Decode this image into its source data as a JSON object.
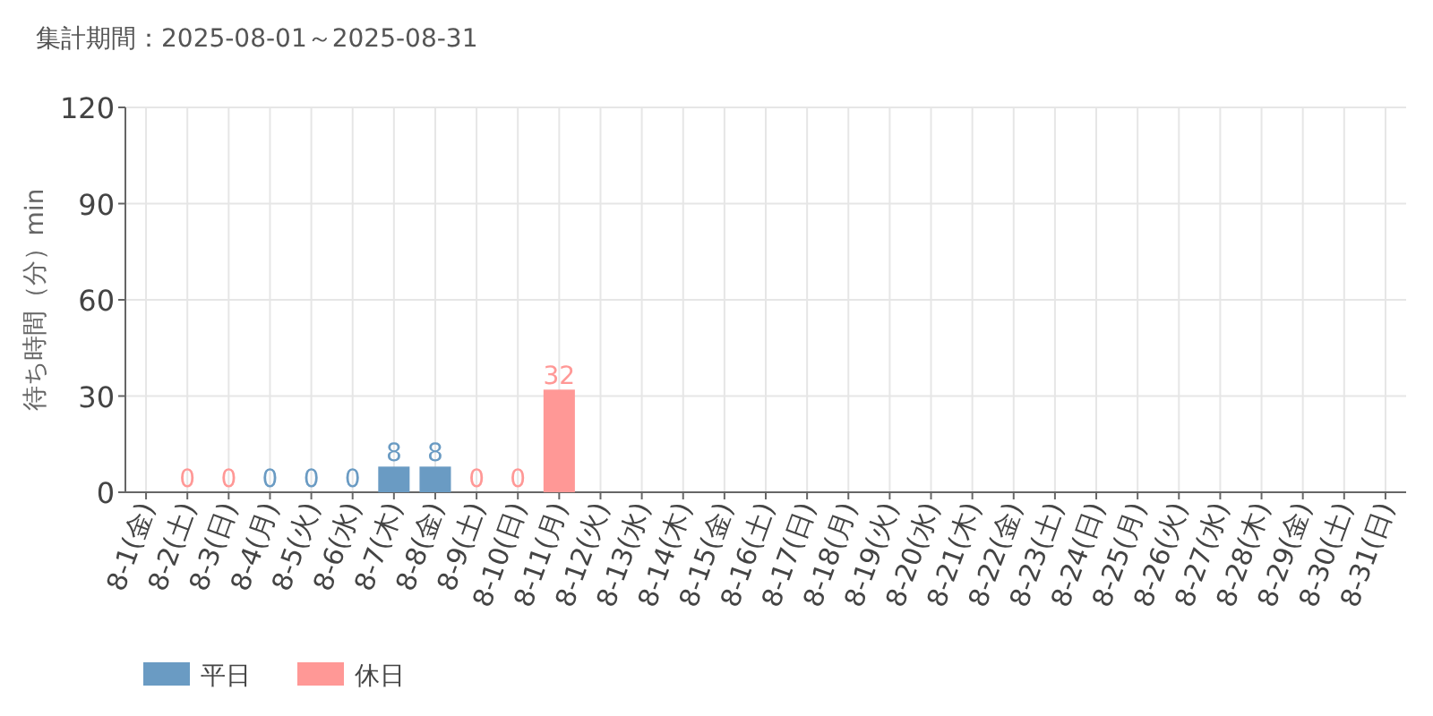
{
  "chart_data": {
    "type": "bar",
    "title": "集計期間：2025-08-01～2025-08-31",
    "ylabel": "待ち時間（分）min",
    "categories": [
      "8-1(金)",
      "8-2(土)",
      "8-3(日)",
      "8-4(月)",
      "8-5(火)",
      "8-6(水)",
      "8-7(木)",
      "8-8(金)",
      "8-9(土)",
      "8-10(日)",
      "8-11(月)",
      "8-12(火)",
      "8-13(水)",
      "8-14(木)",
      "8-15(金)",
      "8-16(土)",
      "8-17(日)",
      "8-18(月)",
      "8-19(火)",
      "8-20(水)",
      "8-21(木)",
      "8-22(金)",
      "8-23(土)",
      "8-24(日)",
      "8-25(月)",
      "8-26(火)",
      "8-27(水)",
      "8-28(木)",
      "8-29(金)",
      "8-30(土)",
      "8-31(日)"
    ],
    "series": [
      {
        "name": "平日",
        "color": "#6a9bc3",
        "values": [
          null,
          null,
          null,
          0,
          0,
          0,
          8,
          8,
          null,
          null,
          null,
          null,
          null,
          null,
          null,
          null,
          null,
          null,
          null,
          null,
          null,
          null,
          null,
          null,
          null,
          null,
          null,
          null,
          null,
          null,
          null
        ]
      },
      {
        "name": "休日",
        "color": "#ff9896",
        "values": [
          null,
          0,
          0,
          null,
          null,
          null,
          null,
          null,
          0,
          0,
          32,
          null,
          null,
          null,
          null,
          null,
          null,
          null,
          null,
          null,
          null,
          null,
          null,
          null,
          null,
          null,
          null,
          null,
          null,
          null,
          null
        ]
      }
    ],
    "ylim": [
      0,
      120
    ],
    "yticks": [
      0,
      30,
      60,
      90,
      120
    ],
    "grid": true,
    "legend": "bottom left",
    "data_labels": true
  }
}
